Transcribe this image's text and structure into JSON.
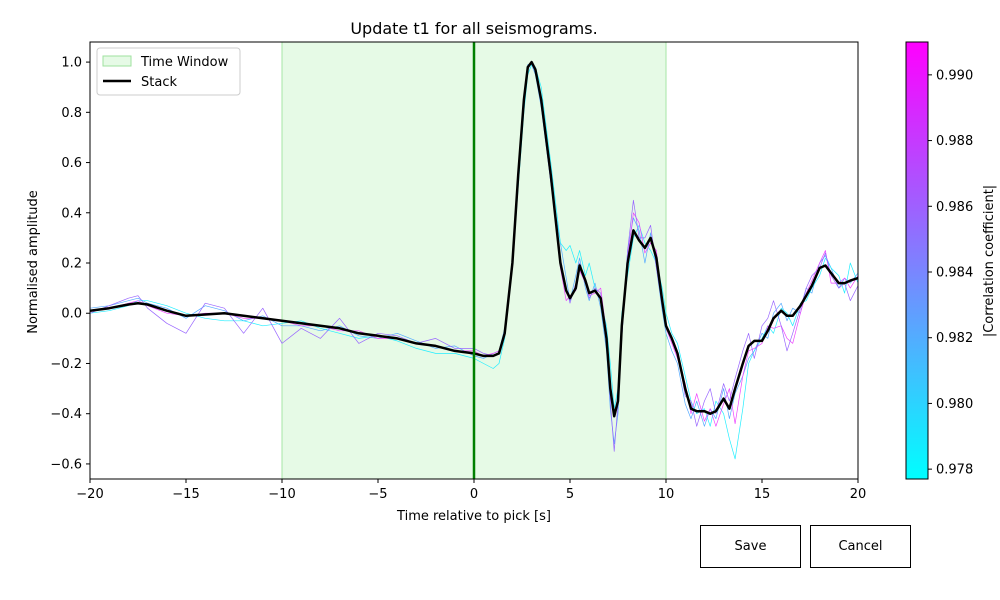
{
  "chart_data": {
    "type": "line",
    "title": "Update t1 for all seismograms.",
    "xlabel": "Time relative to pick [s]",
    "ylabel": "Normalised amplitude",
    "xlim": [
      -20,
      20
    ],
    "ylim": [
      -0.66,
      1.08
    ],
    "xticks": [
      -20,
      -15,
      -10,
      -5,
      0,
      5,
      10,
      15,
      20
    ],
    "yticks": [
      -0.6,
      -0.4,
      -0.2,
      0.0,
      0.2,
      0.4,
      0.6,
      0.8,
      1.0
    ],
    "grid": false,
    "legend_position": "top-left",
    "legend": [
      {
        "label": "Time Window",
        "kind": "patch",
        "color": "#e6fae6",
        "edge": "#9fe29f"
      },
      {
        "label": "Stack",
        "kind": "line",
        "color": "#000000"
      }
    ],
    "time_window": [
      -10,
      10
    ],
    "pick_time": 0,
    "pick_color": "#007f00",
    "series": [
      {
        "name": "Stack",
        "color": "#000000",
        "x": [
          -20,
          -19,
          -18,
          -17.5,
          -17,
          -16,
          -15,
          -14,
          -13,
          -12,
          -11,
          -10,
          -9,
          -8,
          -7,
          -6,
          -5,
          -4,
          -3,
          -2,
          -1,
          0,
          0.5,
          1,
          1.3,
          1.6,
          2,
          2.3,
          2.6,
          2.8,
          3,
          3.2,
          3.5,
          4,
          4.5,
          4.8,
          5,
          5.3,
          5.5,
          5.8,
          6,
          6.3,
          6.6,
          6.9,
          7.1,
          7.3,
          7.5,
          7.7,
          8,
          8.3,
          8.6,
          8.9,
          9.2,
          9.5,
          9.8,
          10,
          10.3,
          10.6,
          11,
          11.3,
          11.6,
          12,
          12.3,
          12.6,
          13,
          13.3,
          13.6,
          14,
          14.3,
          14.6,
          15,
          15.3,
          15.6,
          16,
          16.3,
          16.6,
          17,
          17.3,
          17.6,
          18,
          18.3,
          18.6,
          19,
          19.3,
          19.6,
          20
        ],
        "y": [
          0.01,
          0.02,
          0.035,
          0.04,
          0.035,
          0.01,
          -0.01,
          -0.005,
          0,
          -0.01,
          -0.02,
          -0.03,
          -0.04,
          -0.05,
          -0.06,
          -0.08,
          -0.09,
          -0.1,
          -0.12,
          -0.13,
          -0.15,
          -0.16,
          -0.17,
          -0.17,
          -0.16,
          -0.08,
          0.2,
          0.55,
          0.85,
          0.98,
          1.0,
          0.97,
          0.85,
          0.55,
          0.2,
          0.09,
          0.06,
          0.1,
          0.19,
          0.13,
          0.08,
          0.09,
          0.06,
          -0.1,
          -0.3,
          -0.41,
          -0.35,
          -0.05,
          0.2,
          0.33,
          0.29,
          0.26,
          0.3,
          0.22,
          0.05,
          -0.05,
          -0.1,
          -0.16,
          -0.3,
          -0.38,
          -0.39,
          -0.39,
          -0.4,
          -0.39,
          -0.34,
          -0.38,
          -0.3,
          -0.2,
          -0.13,
          -0.11,
          -0.11,
          -0.07,
          -0.02,
          0.01,
          -0.01,
          -0.01,
          0.03,
          0.07,
          0.11,
          0.18,
          0.19,
          0.16,
          0.12,
          0.12,
          0.13,
          0.14
        ]
      },
      {
        "color": "#55aaff",
        "x": [
          -20,
          -19,
          -18,
          -17.5,
          -17,
          -16,
          -15,
          -14,
          -13,
          -12,
          -11,
          -10,
          -9,
          -8,
          -7,
          -6,
          -5,
          -4,
          -3,
          -2,
          -1,
          0,
          0.5,
          1,
          1.3,
          1.6,
          2,
          2.3,
          2.6,
          2.8,
          3,
          3.2,
          3.5,
          4,
          4.5,
          4.8,
          5,
          5.3,
          5.5,
          5.8,
          6,
          6.3,
          6.6,
          6.9,
          7.1,
          7.3,
          7.5,
          7.7,
          8,
          8.3,
          8.6,
          8.9,
          9.2,
          9.5,
          9.8,
          10,
          10.3,
          10.6,
          11,
          11.3,
          11.6,
          12,
          12.3,
          12.6,
          13,
          13.3,
          13.6,
          14,
          14.3,
          14.6,
          15,
          15.3,
          15.6,
          16,
          16.3,
          16.6,
          17,
          17.3,
          17.6,
          18,
          18.3,
          18.6,
          19,
          19.3,
          19.6,
          20
        ],
        "y": [
          0.02,
          0.03,
          0.05,
          0.06,
          0.04,
          0.02,
          -0.02,
          0.03,
          0.01,
          -0.03,
          -0.01,
          -0.05,
          -0.05,
          -0.07,
          -0.05,
          -0.09,
          -0.1,
          -0.08,
          -0.11,
          -0.14,
          -0.13,
          -0.17,
          -0.18,
          -0.16,
          -0.15,
          -0.06,
          0.22,
          0.57,
          0.87,
          0.99,
          0.99,
          0.95,
          0.82,
          0.52,
          0.28,
          0.14,
          0.05,
          0.15,
          0.22,
          0.1,
          0.05,
          0.12,
          0.02,
          -0.15,
          -0.38,
          -0.52,
          -0.4,
          -0.1,
          0.25,
          0.38,
          0.33,
          0.2,
          0.32,
          0.18,
          0.01,
          -0.08,
          -0.15,
          -0.2,
          -0.36,
          -0.42,
          -0.35,
          -0.45,
          -0.38,
          -0.42,
          -0.3,
          -0.42,
          -0.32,
          -0.25,
          -0.18,
          -0.15,
          -0.08,
          -0.1,
          0.0,
          0.04,
          -0.03,
          0.02,
          0.0,
          0.1,
          0.08,
          0.2,
          0.23,
          0.18,
          0.1,
          0.14,
          0.12,
          0.16
        ]
      },
      {
        "color": "#22eeff",
        "x": [
          -20,
          -19,
          -18,
          -17.5,
          -17,
          -16,
          -15,
          -14,
          -13,
          -12,
          -11,
          -10,
          -9,
          -8,
          -7,
          -6,
          -5,
          -4,
          -3,
          -2,
          -1,
          0,
          0.5,
          1,
          1.3,
          1.6,
          2,
          2.3,
          2.6,
          2.8,
          3,
          3.2,
          3.5,
          4,
          4.5,
          4.8,
          5,
          5.3,
          5.5,
          5.8,
          6,
          6.3,
          6.6,
          6.9,
          7.1,
          7.3,
          7.5,
          7.7,
          8,
          8.3,
          8.6,
          8.9,
          9.2,
          9.5,
          9.8,
          10,
          10.3,
          10.6,
          11,
          11.3,
          11.6,
          12,
          12.3,
          12.6,
          13,
          13.3,
          13.6,
          14,
          14.3,
          14.6,
          15,
          15.3,
          15.6,
          16,
          16.3,
          16.6,
          17,
          17.3,
          17.6,
          18,
          18.3,
          18.6,
          19,
          19.3,
          19.6,
          20
        ],
        "y": [
          0.0,
          0.01,
          0.03,
          0.05,
          0.05,
          0.03,
          0.0,
          -0.02,
          -0.03,
          -0.03,
          -0.05,
          -0.04,
          -0.03,
          -0.06,
          -0.08,
          -0.1,
          -0.09,
          -0.11,
          -0.14,
          -0.16,
          -0.16,
          -0.18,
          -0.2,
          -0.22,
          -0.2,
          -0.1,
          0.18,
          0.5,
          0.8,
          0.95,
          0.99,
          0.98,
          0.9,
          0.6,
          0.28,
          0.25,
          0.27,
          0.2,
          0.25,
          0.15,
          0.2,
          0.1,
          0.05,
          -0.05,
          -0.2,
          -0.38,
          -0.3,
          0.0,
          0.15,
          0.3,
          0.35,
          0.28,
          0.25,
          0.2,
          0.1,
          0.0,
          -0.08,
          -0.12,
          -0.25,
          -0.35,
          -0.4,
          -0.38,
          -0.45,
          -0.35,
          -0.4,
          -0.5,
          -0.58,
          -0.38,
          -0.2,
          -0.15,
          -0.1,
          -0.05,
          -0.08,
          0.02,
          0.0,
          -0.05,
          0.04,
          0.05,
          0.1,
          0.15,
          0.22,
          0.18,
          0.15,
          0.08,
          0.2,
          0.12
        ]
      },
      {
        "color": "#ee44ff",
        "x": [
          -20,
          -19,
          -18,
          -17.5,
          -17,
          -16,
          -15,
          -14,
          -13,
          -12,
          -11,
          -10,
          -9,
          -8,
          -7,
          -6,
          -5,
          -4,
          -3,
          -2,
          -1,
          0,
          0.5,
          1,
          1.3,
          1.6,
          2,
          2.3,
          2.6,
          2.8,
          3,
          3.2,
          3.5,
          4,
          4.5,
          4.8,
          5,
          5.3,
          5.5,
          5.8,
          6,
          6.3,
          6.6,
          6.9,
          7.1,
          7.3,
          7.5,
          7.7,
          8,
          8.3,
          8.6,
          8.9,
          9.2,
          9.5,
          9.8,
          10,
          10.3,
          10.6,
          11,
          11.3,
          11.6,
          12,
          12.3,
          12.6,
          13,
          13.3,
          13.6,
          14,
          14.3,
          14.6,
          15,
          15.3,
          15.6,
          16,
          16.3,
          16.6,
          17,
          17.3,
          17.6,
          18,
          18.3,
          18.6,
          19,
          19.3,
          19.6,
          20
        ],
        "y": [
          0.01,
          0.02,
          0.04,
          0.05,
          0.03,
          0.0,
          -0.01,
          0.0,
          0.0,
          -0.02,
          -0.02,
          -0.03,
          -0.05,
          -0.05,
          -0.07,
          -0.07,
          -0.1,
          -0.1,
          -0.12,
          -0.13,
          -0.15,
          -0.15,
          -0.17,
          -0.16,
          -0.15,
          -0.07,
          0.2,
          0.56,
          0.86,
          0.98,
          1.0,
          0.97,
          0.86,
          0.55,
          0.18,
          0.05,
          0.07,
          0.09,
          0.17,
          0.12,
          0.07,
          0.08,
          0.1,
          -0.08,
          -0.28,
          -0.4,
          -0.33,
          -0.05,
          0.22,
          0.4,
          0.36,
          0.24,
          0.28,
          0.25,
          0.05,
          -0.06,
          -0.12,
          -0.18,
          -0.28,
          -0.4,
          -0.32,
          -0.43,
          -0.38,
          -0.45,
          -0.36,
          -0.3,
          -0.44,
          -0.25,
          -0.15,
          -0.14,
          -0.12,
          -0.05,
          -0.06,
          -0.05,
          -0.1,
          -0.12,
          0.0,
          0.08,
          0.13,
          0.2,
          0.25,
          0.12,
          0.12,
          0.14,
          0.1,
          0.15
        ]
      },
      {
        "color": "#9966ff",
        "x": [
          -20,
          -19,
          -18,
          -17.5,
          -17,
          -16,
          -15,
          -14,
          -13,
          -12,
          -11,
          -10,
          -9,
          -8,
          -7,
          -6,
          -5,
          -4,
          -3,
          -2,
          -1,
          0,
          0.5,
          1,
          1.3,
          1.6,
          2,
          2.3,
          2.6,
          2.8,
          3,
          3.2,
          3.5,
          4,
          4.5,
          4.8,
          5,
          5.3,
          5.5,
          5.8,
          6,
          6.3,
          6.6,
          6.9,
          7.1,
          7.3,
          7.5,
          7.7,
          8,
          8.3,
          8.6,
          8.9,
          9.2,
          9.5,
          9.8,
          10,
          10.3,
          10.6,
          11,
          11.3,
          11.6,
          12,
          12.3,
          12.6,
          13,
          13.3,
          13.6,
          14,
          14.3,
          14.6,
          15,
          15.3,
          15.6,
          16,
          16.3,
          16.6,
          17,
          17.3,
          17.6,
          18,
          18.3,
          18.6,
          19,
          19.3,
          19.6,
          20
        ],
        "y": [
          0.0,
          0.03,
          0.06,
          0.07,
          0.02,
          -0.04,
          -0.08,
          0.04,
          0.02,
          -0.08,
          0.02,
          -0.12,
          -0.06,
          -0.1,
          -0.02,
          -0.12,
          -0.08,
          -0.09,
          -0.12,
          -0.1,
          -0.14,
          -0.14,
          -0.16,
          -0.17,
          -0.16,
          -0.09,
          0.18,
          0.54,
          0.84,
          0.97,
          1.0,
          0.96,
          0.83,
          0.52,
          0.22,
          0.1,
          0.04,
          0.12,
          0.2,
          0.12,
          0.06,
          0.1,
          0.08,
          -0.12,
          -0.35,
          -0.55,
          -0.36,
          -0.1,
          0.25,
          0.45,
          0.3,
          0.3,
          0.35,
          0.18,
          0.03,
          -0.05,
          -0.1,
          -0.15,
          -0.33,
          -0.35,
          -0.45,
          -0.35,
          -0.3,
          -0.4,
          -0.28,
          -0.35,
          -0.26,
          -0.15,
          -0.08,
          -0.18,
          -0.05,
          -0.02,
          0.05,
          -0.05,
          -0.15,
          -0.08,
          0.02,
          0.1,
          0.15,
          0.18,
          0.24,
          0.15,
          0.1,
          0.12,
          0.05,
          0.11
        ]
      }
    ]
  },
  "colorbar": {
    "label": "|Correlation coefficient|",
    "min": 0.9777,
    "max": 0.991,
    "ticks": [
      0.978,
      0.98,
      0.982,
      0.984,
      0.986,
      0.988,
      0.99
    ],
    "colors": [
      "#00ffff",
      "#ff00ff"
    ]
  },
  "buttons": {
    "save": "Save",
    "cancel": "Cancel"
  }
}
